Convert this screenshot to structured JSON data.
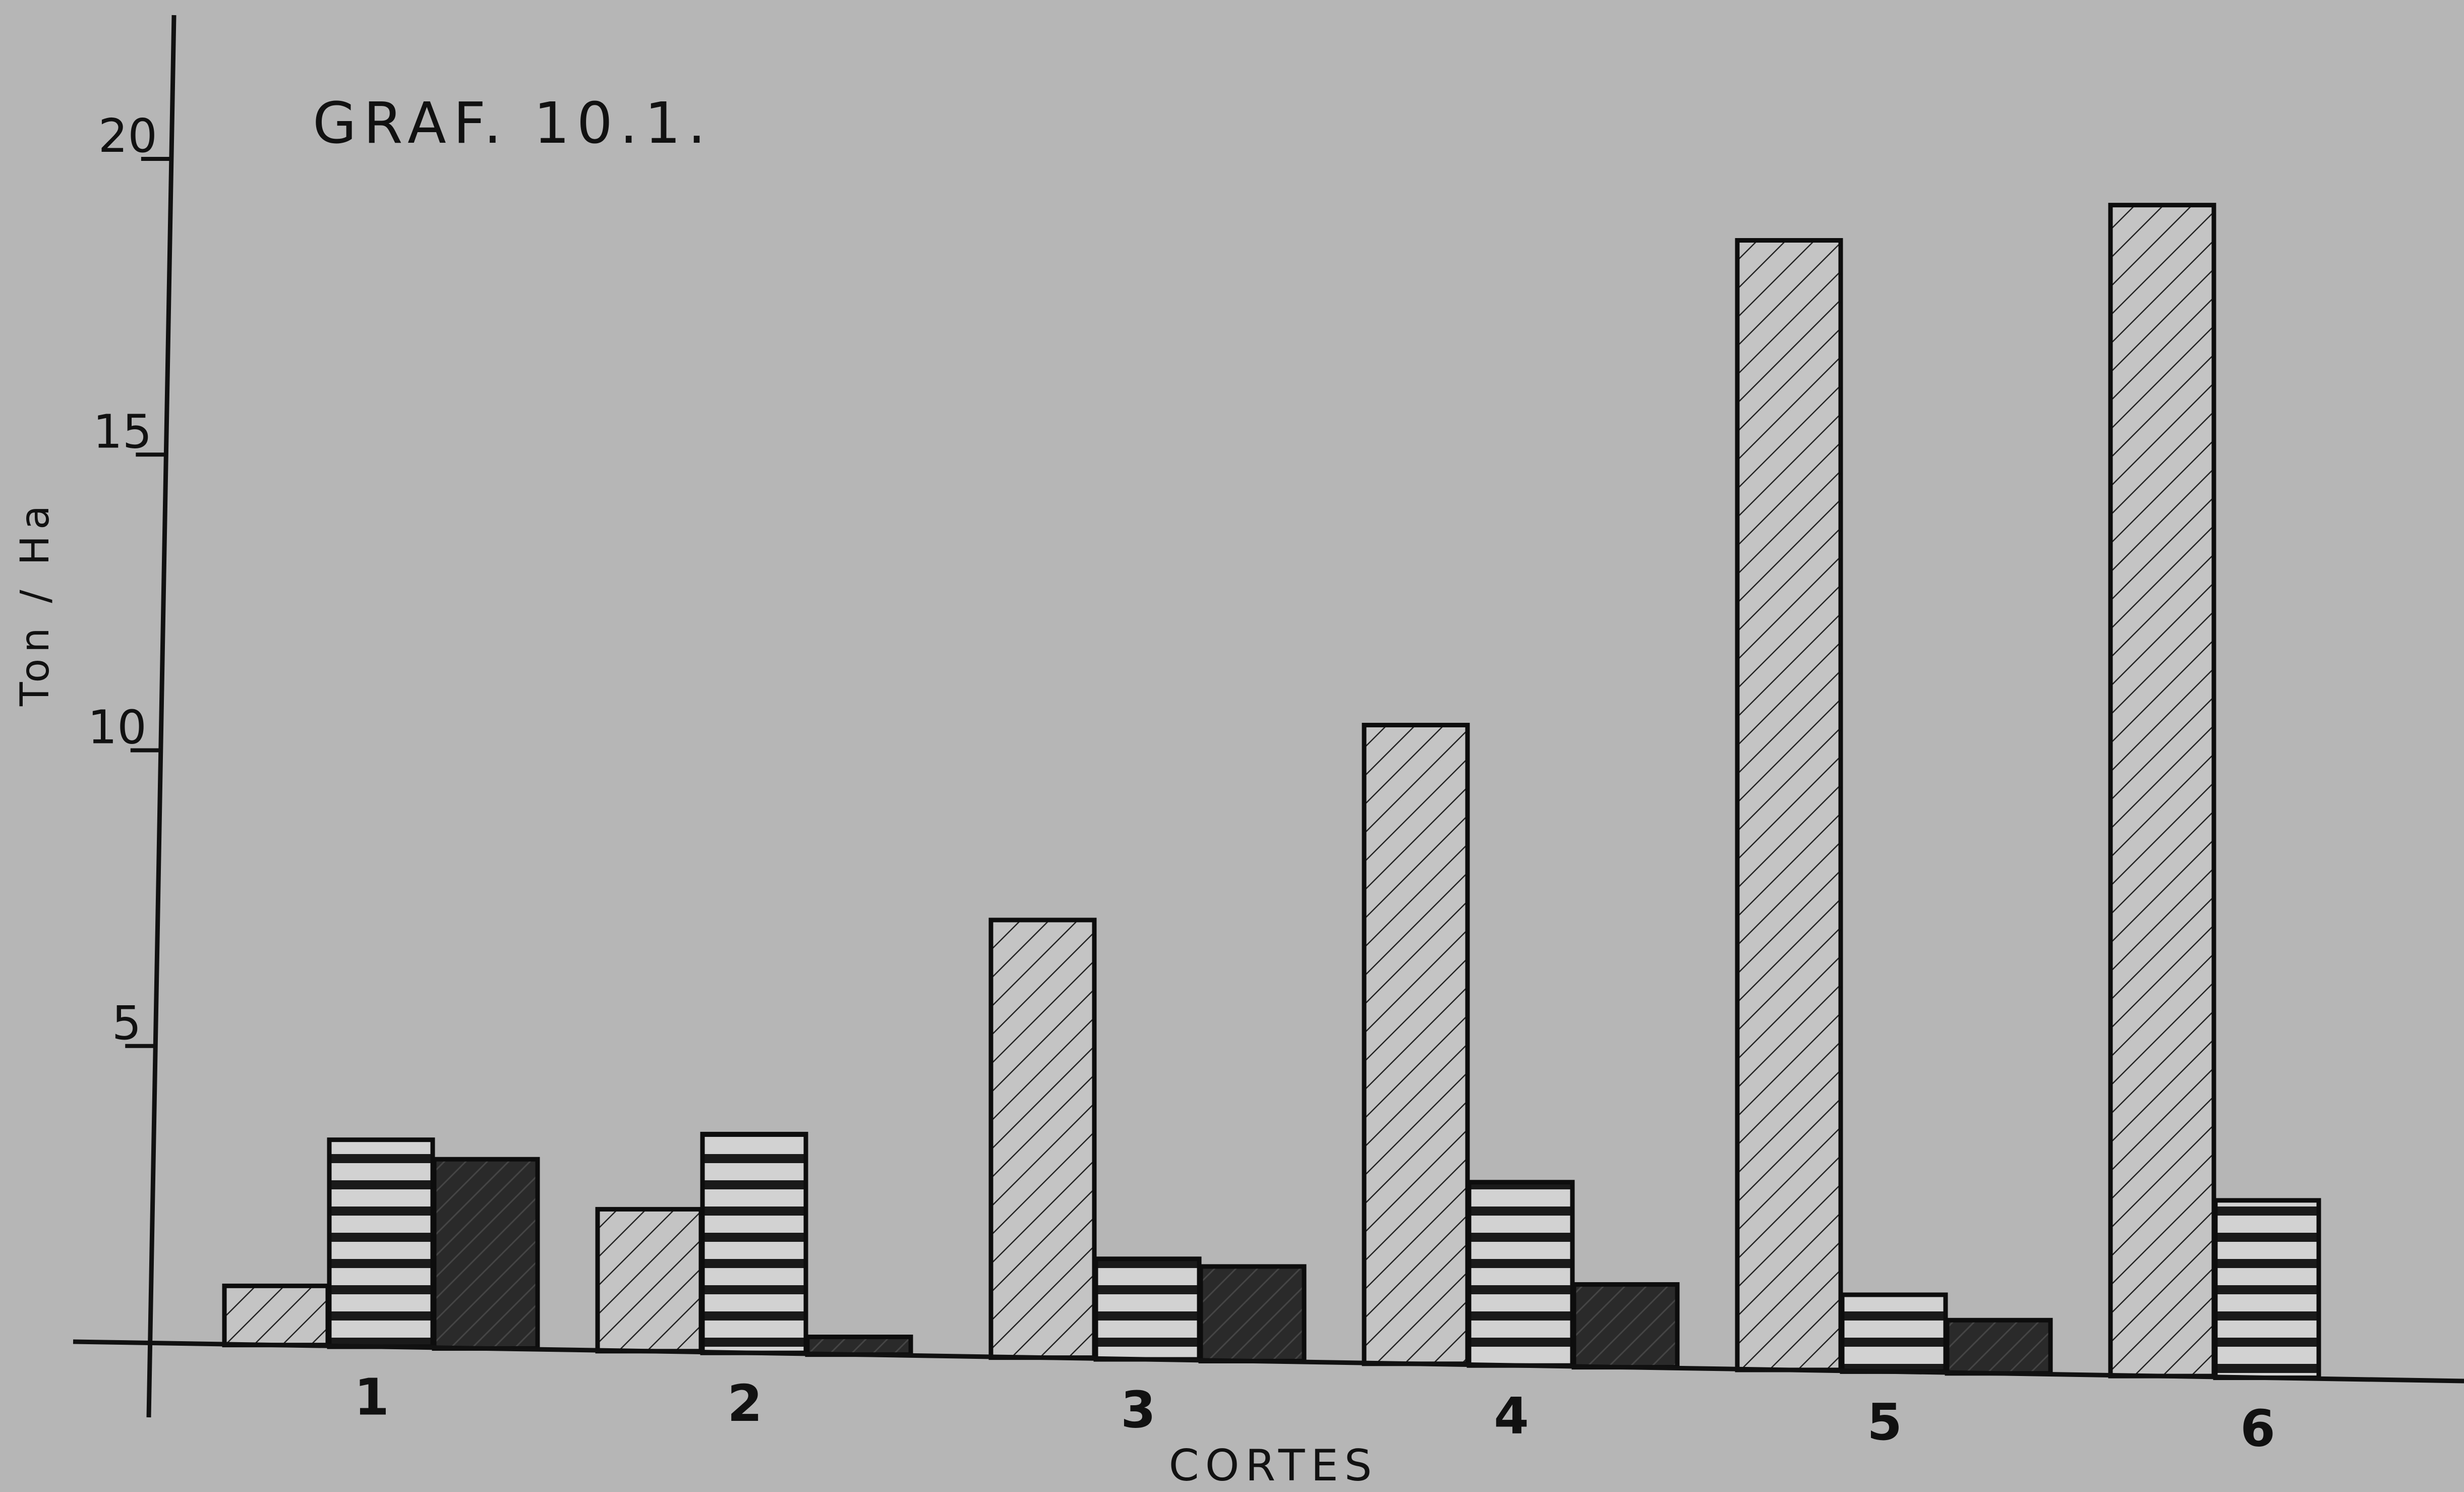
{
  "chart_data": {
    "type": "bar",
    "title": "GRAF. 10.1.",
    "xlabel": "CORTES",
    "ylabel": "Ton / Ha",
    "categories": [
      "1",
      "2",
      "3",
      "4",
      "5",
      "6"
    ],
    "series": [
      {
        "pattern": "diagonal-hatch",
        "values": [
          1.0,
          2.4,
          7.4,
          10.8,
          19.1,
          19.8
        ]
      },
      {
        "pattern": "horizontal-stripes",
        "values": [
          3.5,
          3.7,
          1.7,
          3.1,
          1.3,
          3.0
        ]
      },
      {
        "pattern": "dark-solid",
        "values": [
          3.2,
          0.3,
          1.6,
          1.4,
          0.9,
          0
        ]
      }
    ],
    "ylim": [
      0,
      20
    ],
    "yticks": [
      "5",
      "10",
      "15",
      "20"
    ],
    "legend": "none",
    "grid": false
  },
  "colors": {
    "background": "#b6b6b6",
    "axis": "#111111",
    "hatch_fill": "#c4c4c4",
    "stripe_fill": "#d2d2d2",
    "dark_fill": "#2a2a2a"
  }
}
